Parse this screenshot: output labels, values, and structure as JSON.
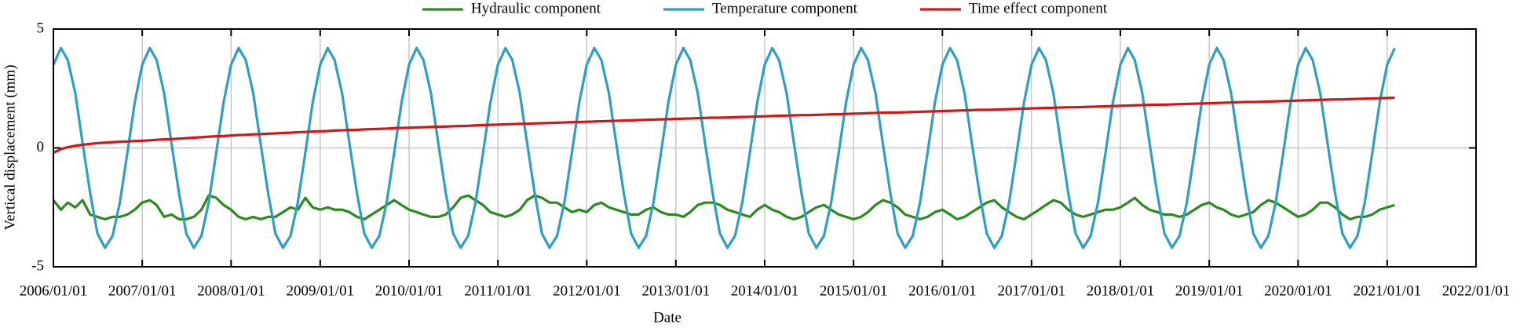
{
  "chart_data": {
    "type": "line",
    "xlabel": "Date",
    "ylabel": "Vertical displacement (mm)",
    "xlim": [
      "2006/01/01",
      "2022/01/01"
    ],
    "xticks": [
      "2006/01/01",
      "2007/01/01",
      "2008/01/01",
      "2009/01/01",
      "2010/01/01",
      "2011/01/01",
      "2012/01/01",
      "2013/01/01",
      "2014/01/01",
      "2015/01/01",
      "2016/01/01",
      "2017/01/01",
      "2018/01/01",
      "2019/01/01",
      "2020/01/01",
      "2021/01/01",
      "2022/01/01"
    ],
    "ylim": [
      -5,
      5
    ],
    "yticks": [
      -5,
      0,
      5
    ],
    "grid": true,
    "legend": "top",
    "x": [
      "2006/01/01",
      "2006/02/01",
      "2006/03/01",
      "2006/04/01",
      "2006/05/01",
      "2006/06/01",
      "2006/07/01",
      "2006/08/01",
      "2006/09/01",
      "2006/10/01",
      "2006/11/01",
      "2006/12/01",
      "2007/01/01",
      "2007/02/01",
      "2007/03/01",
      "2007/04/01",
      "2007/05/01",
      "2007/06/01",
      "2007/07/01",
      "2007/08/01",
      "2007/09/01",
      "2007/10/01",
      "2007/11/01",
      "2007/12/01",
      "2008/01/01",
      "2008/02/01",
      "2008/03/01",
      "2008/04/01",
      "2008/05/01",
      "2008/06/01",
      "2008/07/01",
      "2008/08/01",
      "2008/09/01",
      "2008/10/01",
      "2008/11/01",
      "2008/12/01",
      "2009/01/01",
      "2009/02/01",
      "2009/03/01",
      "2009/04/01",
      "2009/05/01",
      "2009/06/01",
      "2009/07/01",
      "2009/08/01",
      "2009/09/01",
      "2009/10/01",
      "2009/11/01",
      "2009/12/01",
      "2010/01/01",
      "2010/02/01",
      "2010/03/01",
      "2010/04/01",
      "2010/05/01",
      "2010/06/01",
      "2010/07/01",
      "2010/08/01",
      "2010/09/01",
      "2010/10/01",
      "2010/11/01",
      "2010/12/01",
      "2011/01/01",
      "2011/02/01",
      "2011/03/01",
      "2011/04/01",
      "2011/05/01",
      "2011/06/01",
      "2011/07/01",
      "2011/08/01",
      "2011/09/01",
      "2011/10/01",
      "2011/11/01",
      "2011/12/01",
      "2012/01/01",
      "2012/02/01",
      "2012/03/01",
      "2012/04/01",
      "2012/05/01",
      "2012/06/01",
      "2012/07/01",
      "2012/08/01",
      "2012/09/01",
      "2012/10/01",
      "2012/11/01",
      "2012/12/01",
      "2013/01/01",
      "2013/02/01",
      "2013/03/01",
      "2013/04/01",
      "2013/05/01",
      "2013/06/01",
      "2013/07/01",
      "2013/08/01",
      "2013/09/01",
      "2013/10/01",
      "2013/11/01",
      "2013/12/01",
      "2014/01/01",
      "2014/02/01",
      "2014/03/01",
      "2014/04/01",
      "2014/05/01",
      "2014/06/01",
      "2014/07/01",
      "2014/08/01",
      "2014/09/01",
      "2014/10/01",
      "2014/11/01",
      "2014/12/01",
      "2015/01/01",
      "2015/02/01",
      "2015/03/01",
      "2015/04/01",
      "2015/05/01",
      "2015/06/01",
      "2015/07/01",
      "2015/08/01",
      "2015/09/01",
      "2015/10/01",
      "2015/11/01",
      "2015/12/01",
      "2016/01/01",
      "2016/02/01",
      "2016/03/01",
      "2016/04/01",
      "2016/05/01",
      "2016/06/01",
      "2016/07/01",
      "2016/08/01",
      "2016/09/01",
      "2016/10/01",
      "2016/11/01",
      "2016/12/01",
      "2017/01/01",
      "2017/02/01",
      "2017/03/01",
      "2017/04/01",
      "2017/05/01",
      "2017/06/01",
      "2017/07/01",
      "2017/08/01",
      "2017/09/01",
      "2017/10/01",
      "2017/11/01",
      "2017/12/01",
      "2018/01/01",
      "2018/02/01",
      "2018/03/01",
      "2018/04/01",
      "2018/05/01",
      "2018/06/01",
      "2018/07/01",
      "2018/08/01",
      "2018/09/01",
      "2018/10/01",
      "2018/11/01",
      "2018/12/01",
      "2019/01/01",
      "2019/02/01",
      "2019/03/01",
      "2019/04/01",
      "2019/05/01",
      "2019/06/01",
      "2019/07/01",
      "2019/08/01",
      "2019/09/01",
      "2019/10/01",
      "2019/11/01",
      "2019/12/01",
      "2020/01/01",
      "2020/02/01",
      "2020/03/01",
      "2020/04/01",
      "2020/05/01",
      "2020/06/01",
      "2020/07/01",
      "2020/08/01",
      "2020/09/01",
      "2020/10/01",
      "2020/11/01",
      "2020/12/01",
      "2021/01/01",
      "2021/02/01"
    ],
    "series": [
      {
        "name": "Hydraulic component",
        "color": "#2b8a1e",
        "values": [
          -2.2,
          -2.6,
          -2.3,
          -2.5,
          -2.2,
          -2.8,
          -2.9,
          -3.0,
          -2.9,
          -2.9,
          -2.8,
          -2.6,
          -2.3,
          -2.2,
          -2.4,
          -2.9,
          -2.8,
          -3.0,
          -3.0,
          -2.9,
          -2.6,
          -2.0,
          -2.1,
          -2.4,
          -2.6,
          -2.9,
          -3.0,
          -2.9,
          -3.0,
          -2.9,
          -2.9,
          -2.7,
          -2.5,
          -2.6,
          -2.1,
          -2.5,
          -2.6,
          -2.5,
          -2.6,
          -2.6,
          -2.7,
          -2.9,
          -3.0,
          -2.8,
          -2.6,
          -2.4,
          -2.2,
          -2.4,
          -2.6,
          -2.7,
          -2.8,
          -2.9,
          -2.9,
          -2.8,
          -2.5,
          -2.1,
          -2.0,
          -2.2,
          -2.4,
          -2.7,
          -2.8,
          -2.9,
          -2.8,
          -2.6,
          -2.2,
          -2.0,
          -2.1,
          -2.3,
          -2.3,
          -2.5,
          -2.7,
          -2.6,
          -2.7,
          -2.4,
          -2.3,
          -2.5,
          -2.6,
          -2.7,
          -2.8,
          -2.8,
          -2.6,
          -2.5,
          -2.7,
          -2.8,
          -2.8,
          -2.9,
          -2.7,
          -2.4,
          -2.3,
          -2.3,
          -2.4,
          -2.6,
          -2.7,
          -2.8,
          -2.9,
          -2.6,
          -2.4,
          -2.6,
          -2.7,
          -2.9,
          -3.0,
          -2.9,
          -2.7,
          -2.5,
          -2.4,
          -2.6,
          -2.8,
          -2.9,
          -3.0,
          -2.9,
          -2.7,
          -2.4,
          -2.2,
          -2.3,
          -2.5,
          -2.8,
          -2.9,
          -3.0,
          -2.9,
          -2.7,
          -2.6,
          -2.8,
          -3.0,
          -2.9,
          -2.7,
          -2.5,
          -2.3,
          -2.2,
          -2.5,
          -2.7,
          -2.9,
          -3.0,
          -2.8,
          -2.6,
          -2.4,
          -2.2,
          -2.3,
          -2.6,
          -2.8,
          -2.9,
          -2.8,
          -2.7,
          -2.6,
          -2.6,
          -2.5,
          -2.3,
          -2.1,
          -2.4,
          -2.6,
          -2.7,
          -2.8,
          -2.8,
          -2.9,
          -2.8,
          -2.6,
          -2.4,
          -2.3,
          -2.5,
          -2.6,
          -2.8,
          -2.9,
          -2.8,
          -2.7,
          -2.4,
          -2.2,
          -2.3,
          -2.5,
          -2.7,
          -2.9,
          -2.8,
          -2.6,
          -2.3,
          -2.3,
          -2.5,
          -2.8,
          -3.0,
          -2.9,
          -2.9,
          -2.8,
          -2.6,
          -2.5,
          -2.4
        ]
      },
      {
        "name": "Temperature component",
        "color": "#2e9fc0",
        "values": [
          3.5,
          4.2,
          3.7,
          2.3,
          0.2,
          -1.9,
          -3.6,
          -4.2,
          -3.7,
          -2.3,
          -0.2,
          1.9,
          3.5,
          4.2,
          3.7,
          2.3,
          0.2,
          -1.9,
          -3.6,
          -4.2,
          -3.7,
          -2.3,
          -0.2,
          1.9,
          3.5,
          4.2,
          3.7,
          2.3,
          0.2,
          -1.9,
          -3.6,
          -4.2,
          -3.7,
          -2.3,
          -0.2,
          1.9,
          3.5,
          4.2,
          3.7,
          2.3,
          0.2,
          -1.9,
          -3.6,
          -4.2,
          -3.7,
          -2.3,
          -0.2,
          1.9,
          3.5,
          4.2,
          3.7,
          2.3,
          0.2,
          -1.9,
          -3.6,
          -4.2,
          -3.7,
          -2.3,
          -0.2,
          1.9,
          3.5,
          4.2,
          3.7,
          2.3,
          0.2,
          -1.9,
          -3.6,
          -4.2,
          -3.7,
          -2.3,
          -0.2,
          1.9,
          3.5,
          4.2,
          3.7,
          2.3,
          0.2,
          -1.9,
          -3.6,
          -4.2,
          -3.7,
          -2.3,
          -0.2,
          1.9,
          3.5,
          4.2,
          3.7,
          2.3,
          0.2,
          -1.9,
          -3.6,
          -4.2,
          -3.7,
          -2.3,
          -0.2,
          1.9,
          3.5,
          4.2,
          3.7,
          2.3,
          0.2,
          -1.9,
          -3.6,
          -4.2,
          -3.7,
          -2.3,
          -0.2,
          1.9,
          3.5,
          4.2,
          3.7,
          2.3,
          0.2,
          -1.9,
          -3.6,
          -4.2,
          -3.7,
          -2.3,
          -0.2,
          1.9,
          3.5,
          4.2,
          3.7,
          2.3,
          0.2,
          -1.9,
          -3.6,
          -4.2,
          -3.7,
          -2.3,
          -0.2,
          1.9,
          3.5,
          4.2,
          3.7,
          2.3,
          0.2,
          -1.9,
          -3.6,
          -4.2,
          -3.7,
          -2.3,
          -0.2,
          1.9,
          3.5,
          4.2,
          3.7,
          2.3,
          0.2,
          -1.9,
          -3.6,
          -4.2,
          -3.7,
          -2.3,
          -0.2,
          1.9,
          3.5,
          4.2,
          3.7,
          2.3,
          0.2,
          -1.9,
          -3.6,
          -4.2,
          -3.7,
          -2.3,
          -0.2,
          1.9,
          3.5,
          4.2,
          3.7,
          2.3,
          0.2,
          -1.9,
          -3.6,
          -4.2,
          -3.7,
          -2.3,
          -0.2,
          1.9,
          3.5,
          4.2
        ]
      },
      {
        "name": "Time effect component",
        "color": "#d01818",
        "values": [
          -0.2,
          -0.05,
          0.03,
          0.09,
          0.13,
          0.17,
          0.2,
          0.22,
          0.24,
          0.26,
          0.27,
          0.29,
          0.3,
          0.32,
          0.34,
          0.36,
          0.37,
          0.39,
          0.41,
          0.43,
          0.45,
          0.47,
          0.49,
          0.5,
          0.52,
          0.54,
          0.55,
          0.57,
          0.58,
          0.6,
          0.61,
          0.63,
          0.64,
          0.66,
          0.67,
          0.69,
          0.7,
          0.71,
          0.73,
          0.74,
          0.75,
          0.76,
          0.78,
          0.79,
          0.8,
          0.81,
          0.83,
          0.84,
          0.85,
          0.86,
          0.87,
          0.88,
          0.89,
          0.9,
          0.91,
          0.92,
          0.93,
          0.95,
          0.96,
          0.97,
          0.98,
          0.99,
          1.0,
          1.01,
          1.02,
          1.03,
          1.04,
          1.05,
          1.06,
          1.07,
          1.08,
          1.09,
          1.1,
          1.11,
          1.12,
          1.13,
          1.14,
          1.15,
          1.16,
          1.17,
          1.18,
          1.19,
          1.2,
          1.21,
          1.22,
          1.23,
          1.24,
          1.25,
          1.26,
          1.27,
          1.27,
          1.28,
          1.29,
          1.3,
          1.31,
          1.32,
          1.33,
          1.34,
          1.35,
          1.36,
          1.37,
          1.38,
          1.38,
          1.39,
          1.4,
          1.41,
          1.42,
          1.43,
          1.44,
          1.45,
          1.46,
          1.47,
          1.48,
          1.49,
          1.49,
          1.5,
          1.51,
          1.52,
          1.53,
          1.54,
          1.55,
          1.56,
          1.57,
          1.58,
          1.59,
          1.6,
          1.6,
          1.61,
          1.62,
          1.63,
          1.64,
          1.65,
          1.66,
          1.67,
          1.68,
          1.69,
          1.7,
          1.71,
          1.71,
          1.72,
          1.73,
          1.74,
          1.75,
          1.76,
          1.77,
          1.78,
          1.79,
          1.8,
          1.81,
          1.82,
          1.82,
          1.83,
          1.84,
          1.85,
          1.86,
          1.87,
          1.88,
          1.89,
          1.9,
          1.91,
          1.92,
          1.93,
          1.93,
          1.94,
          1.95,
          1.96,
          1.97,
          1.98,
          1.99,
          2.0,
          2.01,
          2.02,
          2.03,
          2.04,
          2.04,
          2.05,
          2.06,
          2.07,
          2.08,
          2.09,
          2.1,
          2.11
        ]
      }
    ]
  }
}
